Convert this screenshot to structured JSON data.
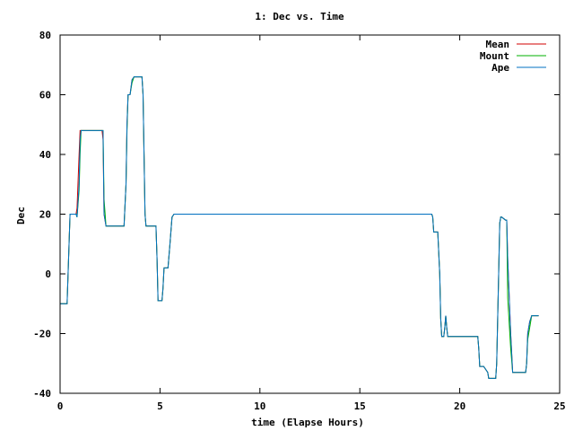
{
  "chart_data": {
    "type": "line",
    "title": "1: Dec vs. Time",
    "xlabel": "time (Elapse Hours)",
    "ylabel": "Dec",
    "xlim": [
      0,
      25
    ],
    "ylim": [
      -40,
      80
    ],
    "xticks": [
      0,
      5,
      10,
      15,
      20,
      25
    ],
    "yticks": [
      -40,
      -20,
      0,
      20,
      40,
      60,
      80
    ],
    "grid": false,
    "legend_position": "top-right",
    "series": [
      {
        "name": "Mean",
        "color": "#d00000",
        "x": [
          0,
          0.35,
          0.4,
          0.5,
          0.8,
          0.85,
          0.95,
          1.0,
          1.05,
          1.1,
          1.15,
          1.2,
          2.1,
          2.15,
          2.2,
          2.3,
          2.4,
          3.2,
          3.3,
          3.35,
          3.4,
          3.5,
          3.6,
          3.7,
          3.8,
          4.1,
          4.15,
          4.2,
          4.25,
          4.3,
          4.35,
          4.4,
          4.8,
          4.85,
          4.9,
          5.1,
          5.15,
          5.2,
          5.4,
          5.5,
          5.6,
          5.7,
          9.0,
          14.7,
          18.6,
          18.65,
          18.7,
          18.9,
          19.0,
          19.05,
          19.1,
          19.2,
          19.25,
          19.3,
          19.35,
          19.4,
          20.9,
          20.95,
          21.0,
          21.1,
          21.2,
          21.4,
          21.45,
          21.5,
          21.8,
          21.85,
          21.95,
          22.0,
          22.05,
          22.1,
          22.3,
          22.35,
          22.4,
          22.55,
          22.65,
          22.7,
          22.75,
          22.8,
          23.3,
          23.35,
          23.4,
          23.5,
          23.6,
          23.65,
          23.7,
          23.95
        ],
        "y": [
          -10,
          -10,
          0,
          20,
          20,
          22,
          40,
          48,
          48,
          48,
          48,
          48,
          48,
          45,
          20,
          16,
          16,
          16,
          30,
          50,
          60,
          60,
          65,
          66,
          66,
          66,
          60,
          40,
          20,
          16,
          16,
          16,
          16,
          5,
          -9,
          -9,
          -5,
          2,
          2,
          10,
          19,
          20,
          20,
          20,
          20,
          19,
          14,
          14,
          0,
          -15,
          -21,
          -21,
          -18,
          -14,
          -18,
          -21,
          -21,
          -25,
          -31,
          -31,
          -31,
          -33,
          -35,
          -35,
          -35,
          -30,
          0,
          17,
          19,
          19,
          18,
          18,
          5,
          -20,
          -33,
          -33,
          -33,
          -33,
          -33,
          -30,
          -20,
          -16,
          -14,
          -14,
          -14,
          -14
        ]
      },
      {
        "name": "Mount",
        "color": "#00b000",
        "x": [
          0,
          0.35,
          0.4,
          0.5,
          0.8,
          0.85,
          0.95,
          1.0,
          1.05,
          1.1,
          1.15,
          1.2,
          2.1,
          2.15,
          2.2,
          2.3,
          2.4,
          3.2,
          3.3,
          3.35,
          3.4,
          3.5,
          3.6,
          3.7,
          3.8,
          4.1,
          4.15,
          4.2,
          4.25,
          4.3,
          4.35,
          4.4,
          4.8,
          4.85,
          4.9,
          5.1,
          5.15,
          5.2,
          5.4,
          5.5,
          5.6,
          5.7,
          9.0,
          14.7,
          18.6,
          18.65,
          18.7,
          18.9,
          19.0,
          19.05,
          19.1,
          19.2,
          19.25,
          19.3,
          19.35,
          19.4,
          20.9,
          20.95,
          21.0,
          21.1,
          21.2,
          21.4,
          21.45,
          21.5,
          21.8,
          21.85,
          21.95,
          22.0,
          22.05,
          22.1,
          22.3,
          22.35,
          22.4,
          22.55,
          22.65,
          22.7,
          22.75,
          22.8,
          23.3,
          23.35,
          23.4,
          23.5,
          23.6,
          23.65,
          23.7,
          23.95
        ],
        "y": [
          -10,
          -10,
          0,
          20,
          20,
          19,
          28,
          40,
          48,
          48,
          48,
          48,
          48,
          48,
          25,
          16,
          16,
          16,
          30,
          48,
          60,
          60,
          64,
          66,
          66,
          66,
          60,
          40,
          20,
          16,
          16,
          16,
          16,
          5,
          -9,
          -9,
          -5,
          2,
          2,
          10,
          19,
          20,
          20,
          20,
          20,
          19,
          14,
          14,
          0,
          -15,
          -21,
          -21,
          -18,
          -14,
          -18,
          -21,
          -21,
          -25,
          -31,
          -31,
          -31,
          -33,
          -35,
          -35,
          -35,
          -30,
          0,
          17,
          19,
          19,
          18,
          18,
          -8,
          -25,
          -33,
          -33,
          -33,
          -33,
          -33,
          -30,
          -22,
          -18,
          -14,
          -14,
          -14,
          -14
        ]
      },
      {
        "name": "Ape",
        "color": "#0070c0",
        "x": [
          0,
          0.35,
          0.4,
          0.5,
          0.8,
          0.85,
          0.95,
          1.0,
          1.05,
          1.1,
          1.15,
          1.2,
          2.1,
          2.15,
          2.2,
          2.3,
          2.4,
          3.2,
          3.3,
          3.35,
          3.4,
          3.5,
          3.6,
          3.7,
          3.8,
          4.1,
          4.15,
          4.2,
          4.25,
          4.3,
          4.35,
          4.4,
          4.8,
          4.85,
          4.9,
          5.1,
          5.15,
          5.2,
          5.4,
          5.5,
          5.6,
          5.7,
          9.0,
          14.7,
          18.6,
          18.65,
          18.7,
          18.9,
          19.0,
          19.05,
          19.1,
          19.2,
          19.25,
          19.3,
          19.35,
          19.4,
          20.9,
          20.95,
          21.0,
          21.1,
          21.2,
          21.4,
          21.45,
          21.5,
          21.8,
          21.85,
          21.95,
          22.0,
          22.05,
          22.1,
          22.3,
          22.35,
          22.4,
          22.55,
          22.65,
          22.7,
          22.75,
          22.8,
          23.3,
          23.35,
          23.4,
          23.5,
          23.6,
          23.65,
          23.7,
          23.95
        ],
        "y": [
          -10,
          -10,
          0,
          20,
          20,
          19,
          30,
          45,
          48,
          48,
          48,
          48,
          48,
          48,
          20,
          16,
          16,
          16,
          30,
          50,
          60,
          60,
          65,
          66,
          66,
          66,
          60,
          40,
          20,
          16,
          16,
          16,
          16,
          5,
          -9,
          -9,
          -5,
          2,
          2,
          10,
          19,
          20,
          20,
          20,
          20,
          19,
          14,
          14,
          0,
          -15,
          -21,
          -21,
          -18,
          -14,
          -18,
          -21,
          -21,
          -25,
          -31,
          -31,
          -31,
          -33,
          -35,
          -35,
          -35,
          -30,
          0,
          17,
          19,
          19,
          18,
          18,
          5,
          -20,
          -33,
          -33,
          -33,
          -33,
          -33,
          -30,
          -20,
          -16,
          -14,
          -14,
          -14,
          -14
        ]
      }
    ]
  }
}
